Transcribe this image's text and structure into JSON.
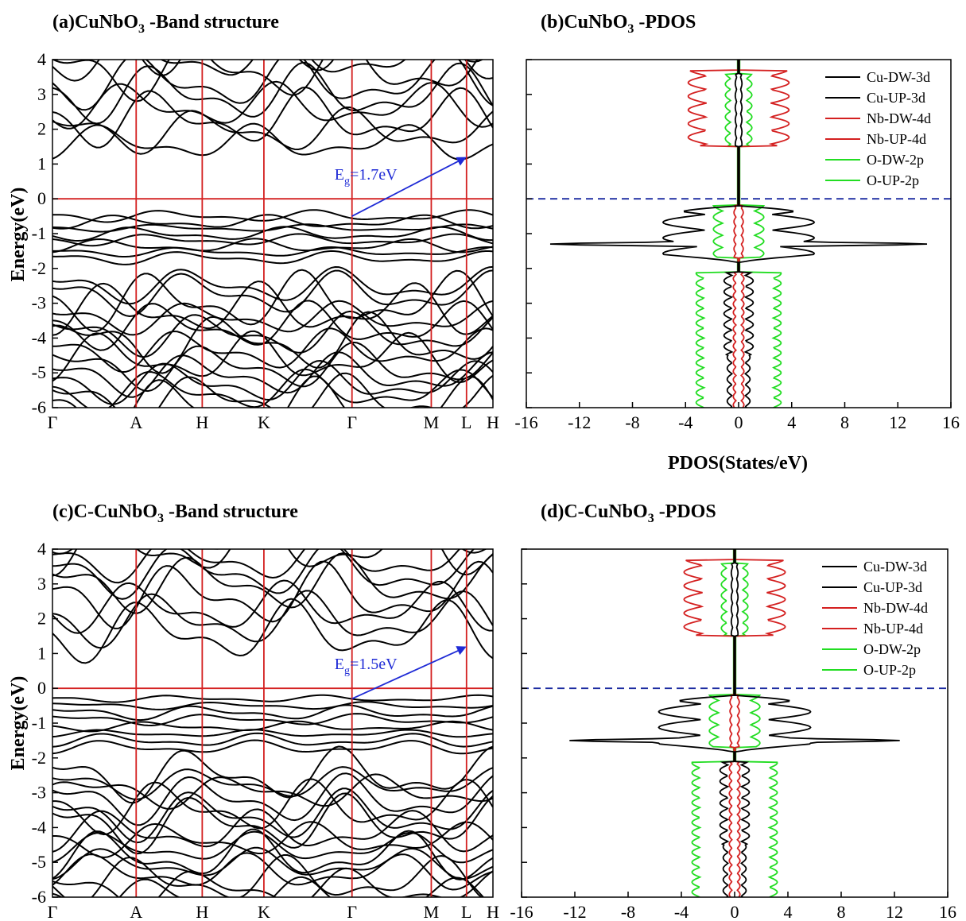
{
  "figure": {
    "title_a": "(a)CuNbO",
    "title_a_sub": "3",
    "title_a_rest": " -Band structure",
    "title_b": "(b)CuNbO",
    "title_b_sub": "3",
    "title_b_rest": " -PDOS",
    "title_c": "(c)C-CuNbO",
    "title_c_sub": "3",
    "title_c_rest": " -Band structure",
    "title_d": "(d)C-CuNbO",
    "title_d_sub": "3",
    "title_d_rest": " -PDOS",
    "energy_label": "Energy(eV)",
    "pdos_label": "PDOS(States/eV)",
    "gap_a_prefix": "E",
    "gap_a_sub": "g",
    "gap_a_value": "=1.7eV",
    "gap_c_prefix": "E",
    "gap_c_sub": "g",
    "gap_c_value": "=1.5eV"
  },
  "colors": {
    "band": "#000000",
    "kline": "#d42020",
    "arrow": "#1f2bd6",
    "fermi": "#1a2aa0",
    "cu": "#000000",
    "nb": "#d42020",
    "o": "#22dd22"
  },
  "chart_data": [
    {
      "id": "a",
      "type": "line",
      "title": "(a)CuNbO3 -Band structure",
      "ylabel": "Energy(eV)",
      "ylim": [
        -6,
        4
      ],
      "yticks": [
        "4",
        "3",
        "2",
        "1",
        "0",
        "-1",
        "-2",
        "-3",
        "-4",
        "-5",
        "-6"
      ],
      "kpoints": [
        "Γ",
        "A",
        "H",
        "K",
        "Γ",
        "M",
        "L",
        "H"
      ],
      "kpoint_positions": [
        0,
        0.19,
        0.34,
        0.48,
        0.68,
        0.86,
        0.94,
        1.0
      ],
      "fermi_level": 0,
      "band_gap": {
        "label": "Eg=1.7eV",
        "from": [
          0.68,
          -0.5
        ],
        "to": [
          0.94,
          1.2
        ]
      },
      "valence_band_groups_eV": [
        [
          -0.5,
          -1.7
        ],
        [
          -2.5,
          -6
        ]
      ],
      "conduction_band_groups_eV": [
        [
          1.2,
          4
        ]
      ]
    },
    {
      "id": "b",
      "type": "line",
      "title": "(b)CuNbO3 -PDOS",
      "xlabel": "PDOS(States/eV)",
      "xlim": [
        -16,
        16
      ],
      "ylim": [
        -6,
        4
      ],
      "xticks": [
        "-16",
        "-12",
        "-8",
        "-4",
        "0",
        "4",
        "8",
        "12",
        "16"
      ],
      "legend": [
        "Cu-DW-3d",
        "Cu-UP-3d",
        "Nb-DW-4d",
        "Nb-UP-4d",
        "O-DW-2p",
        "O-UP-2p"
      ],
      "legend_position": "top-right",
      "fermi_level": 0,
      "peaks": {
        "cu_max": 14.2,
        "cu_peak_energy": -1.3
      }
    },
    {
      "id": "c",
      "type": "line",
      "title": "(c)C-CuNbO3 -Band structure",
      "ylabel": "Energy(eV)",
      "ylim": [
        -6,
        4
      ],
      "yticks": [
        "4",
        "3",
        "2",
        "1",
        "0",
        "-1",
        "-2",
        "-3",
        "-4",
        "-5",
        "-6"
      ],
      "kpoints": [
        "Γ",
        "A",
        "H",
        "K",
        "Γ",
        "M",
        "L",
        "H"
      ],
      "kpoint_positions": [
        0,
        0.19,
        0.34,
        0.48,
        0.68,
        0.86,
        0.94,
        1.0
      ],
      "fermi_level": 0,
      "band_gap": {
        "label": "Eg=1.5eV",
        "from": [
          0.68,
          -0.3
        ],
        "to": [
          0.94,
          1.2
        ]
      },
      "valence_band_groups_eV": [
        [
          -0.3,
          -1.7
        ],
        [
          -2.5,
          -6
        ]
      ],
      "conduction_band_groups_eV": [
        [
          1.2,
          4
        ]
      ]
    },
    {
      "id": "d",
      "type": "line",
      "title": "(d)C-CuNbO3 -PDOS",
      "xlim": [
        -16,
        16
      ],
      "ylim": [
        -6,
        4
      ],
      "xticks": [
        "-16",
        "-12",
        "-8",
        "-4",
        "0",
        "4",
        "8",
        "12",
        "16"
      ],
      "legend": [
        "Cu-DW-3d",
        "Cu-UP-3d",
        "Nb-DW-4d",
        "Nb-UP-4d",
        "O-DW-2p",
        "O-UP-2p"
      ],
      "legend_position": "top-right",
      "fermi_level": 0,
      "peaks": {
        "cu_max": 12.4,
        "cu_peak_energy": -1.5
      }
    }
  ]
}
